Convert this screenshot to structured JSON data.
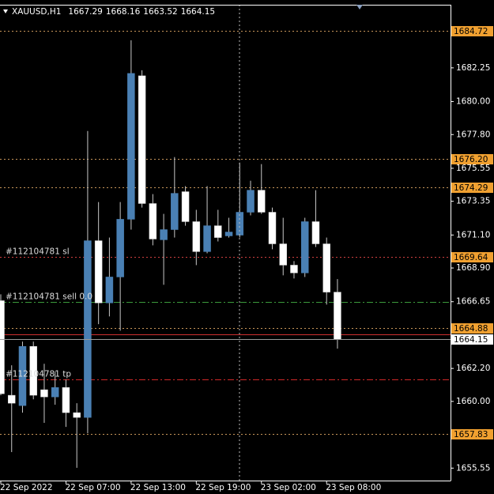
{
  "chart_data": {
    "type": "candlestick",
    "title": "XAUUSD,H1",
    "categories": [
      "22 Sep 2022",
      null,
      null,
      null,
      null,
      null,
      "22 Sep 07:00",
      null,
      null,
      null,
      null,
      null,
      "22 Sep 13:00",
      null,
      null,
      null,
      null,
      null,
      "22 Sep 19:00",
      null,
      null,
      null,
      null,
      null,
      "23 Sep 02:00",
      null,
      null,
      null,
      null,
      null,
      "23 Sep 08:00",
      null
    ],
    "open": [
      1666.72,
      1660.41,
      1659.72,
      1663.67,
      1660.78,
      1660.3,
      1660.93,
      1659.25,
      1658.93,
      1670.72,
      1666.57,
      1668.3,
      1672.15,
      1681.72,
      1673.2,
      1670.78,
      1671.46,
      1673.99,
      1671.99,
      1669.99,
      1671.72,
      1671.04,
      1671.09,
      1672.62,
      1674.09,
      1672.62,
      1670.51,
      1669.09,
      1668.57,
      1671.99,
      1670.51,
      1667.29
    ],
    "high": [
      1667.14,
      1662.41,
      1663.99,
      1663.99,
      1662.51,
      1661.99,
      1661.46,
      1659.88,
      1678.04,
      1673.3,
      1670.93,
      1673.3,
      1684.09,
      1682.09,
      1673.83,
      1672.51,
      1676.3,
      1674.36,
      1672.78,
      1674.36,
      1672.78,
      1672.25,
      1675.93,
      1674.72,
      1675.83,
      1672.93,
      1672.25,
      1669.36,
      1672.25,
      1674.09,
      1670.93,
      1668.16
    ],
    "low": [
      1660.41,
      1656.62,
      1659.25,
      1660.14,
      1658.57,
      1659.78,
      1658.3,
      1655.57,
      1657.88,
      1665.15,
      1665.67,
      1664.72,
      1671.46,
      1672.93,
      1670.41,
      1667.78,
      1670.93,
      1671.72,
      1669.09,
      1669.88,
      1670.67,
      1670.93,
      1670.93,
      1672.41,
      1672.51,
      1670.15,
      1668.41,
      1668.2,
      1668.3,
      1670.3,
      1666.46,
      1663.52
    ],
    "close": [
      1660.51,
      1659.88,
      1663.67,
      1660.41,
      1660.3,
      1660.93,
      1659.25,
      1658.93,
      1670.72,
      1666.57,
      1668.3,
      1672.15,
      1681.88,
      1673.2,
      1670.83,
      1671.46,
      1673.88,
      1671.99,
      1669.99,
      1671.72,
      1670.93,
      1671.3,
      1672.62,
      1674.09,
      1672.62,
      1670.51,
      1669.09,
      1668.57,
      1671.99,
      1670.51,
      1667.29,
      1664.15
    ],
    "up_color": "#4a80b4",
    "down_color": "#ffffff",
    "wick_color": "#c8c8c8",
    "ylim": [
      1654.72,
      1686.46
    ],
    "yticks": [
      1682.25,
      {
        "value": 1680,
        "label": "1680.00"
      },
      {
        "value": 1677.8,
        "label": "1677.80"
      },
      1675.55,
      1673.35,
      {
        "value": 1671.1,
        "label": "1671.10"
      },
      {
        "value": 1668.9,
        "label": "1668.90"
      },
      1666.65,
      {
        "value": 1662.2,
        "label": "1662.20"
      },
      {
        "value": 1660,
        "label": "1660.00"
      },
      1655.55
    ],
    "hlines": [
      {
        "value": 1684.72
      },
      {
        "value": 1676.2,
        "label": "1676.20"
      },
      {
        "value": 1674.29
      },
      {
        "value": 1664.88
      },
      {
        "value": 1657.83
      }
    ],
    "hline_color": "#c8965a",
    "tag_color": "#f0a030",
    "orders": [
      {
        "text": "#112104781 sl",
        "value": 1669.64,
        "color": "#d04040",
        "style": "dotted",
        "tag": true
      },
      {
        "text": "#112104781 sell 0.0",
        "value": 1666.62,
        "color": "#3c9a3c",
        "style": "dashdot"
      },
      {
        "text": "#112104781 tp",
        "value": 1661.46,
        "color": "#d02828",
        "style": "dashdot"
      }
    ],
    "ask": 1664.46,
    "ask_color": "#d03030",
    "bid_color": "#9a9a9a"
  }
}
